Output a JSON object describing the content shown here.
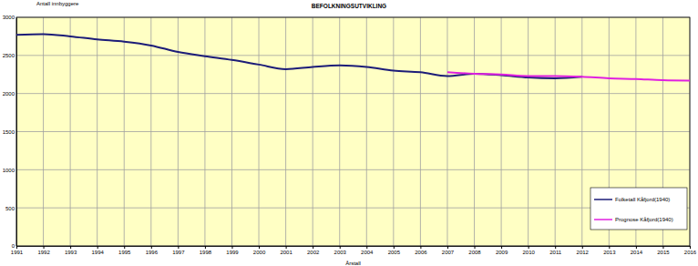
{
  "chart_data": {
    "type": "line",
    "title": "BEFOLKNINGSUTVIKLING",
    "y_label": "Antall innbyggere",
    "x_label": "Årstall",
    "x": [
      1991,
      1992,
      1993,
      1994,
      1995,
      1996,
      1997,
      1998,
      1999,
      2000,
      2001,
      2002,
      2003,
      2004,
      2005,
      2006,
      2007,
      2008,
      2009,
      2010,
      2011,
      2012,
      2013,
      2014,
      2015,
      2016
    ],
    "series": [
      {
        "name": "Folketall Kåfjord(1940)",
        "color": "#1c1c78",
        "values": [
          2770,
          2780,
          2750,
          2710,
          2680,
          2630,
          2545,
          2490,
          2440,
          2380,
          2320,
          2350,
          2370,
          2350,
          2300,
          2280,
          2230,
          2260,
          2240,
          2210,
          2200,
          2220,
          null,
          null,
          null,
          null
        ]
      },
      {
        "name": "Prognose Kåfjord(1940)",
        "color": "#e020e0",
        "values": [
          null,
          null,
          null,
          null,
          null,
          null,
          null,
          null,
          null,
          null,
          null,
          null,
          null,
          null,
          null,
          null,
          2280,
          2260,
          2250,
          2230,
          2230,
          2220,
          2200,
          2190,
          2175,
          2170
        ]
      }
    ],
    "xlim": [
      1991,
      2016
    ],
    "xticks": [
      1991,
      1992,
      1993,
      1994,
      1995,
      1996,
      1997,
      1998,
      1999,
      2000,
      2001,
      2002,
      2003,
      2004,
      2005,
      2006,
      2007,
      2008,
      2009,
      2010,
      2011,
      2012,
      2013,
      2014,
      2015,
      2016
    ],
    "ylim": [
      0,
      3000
    ],
    "yticks": [
      0,
      500,
      1000,
      1500,
      2000,
      2500,
      3000
    ],
    "grid": true,
    "legend": "lower right"
  }
}
